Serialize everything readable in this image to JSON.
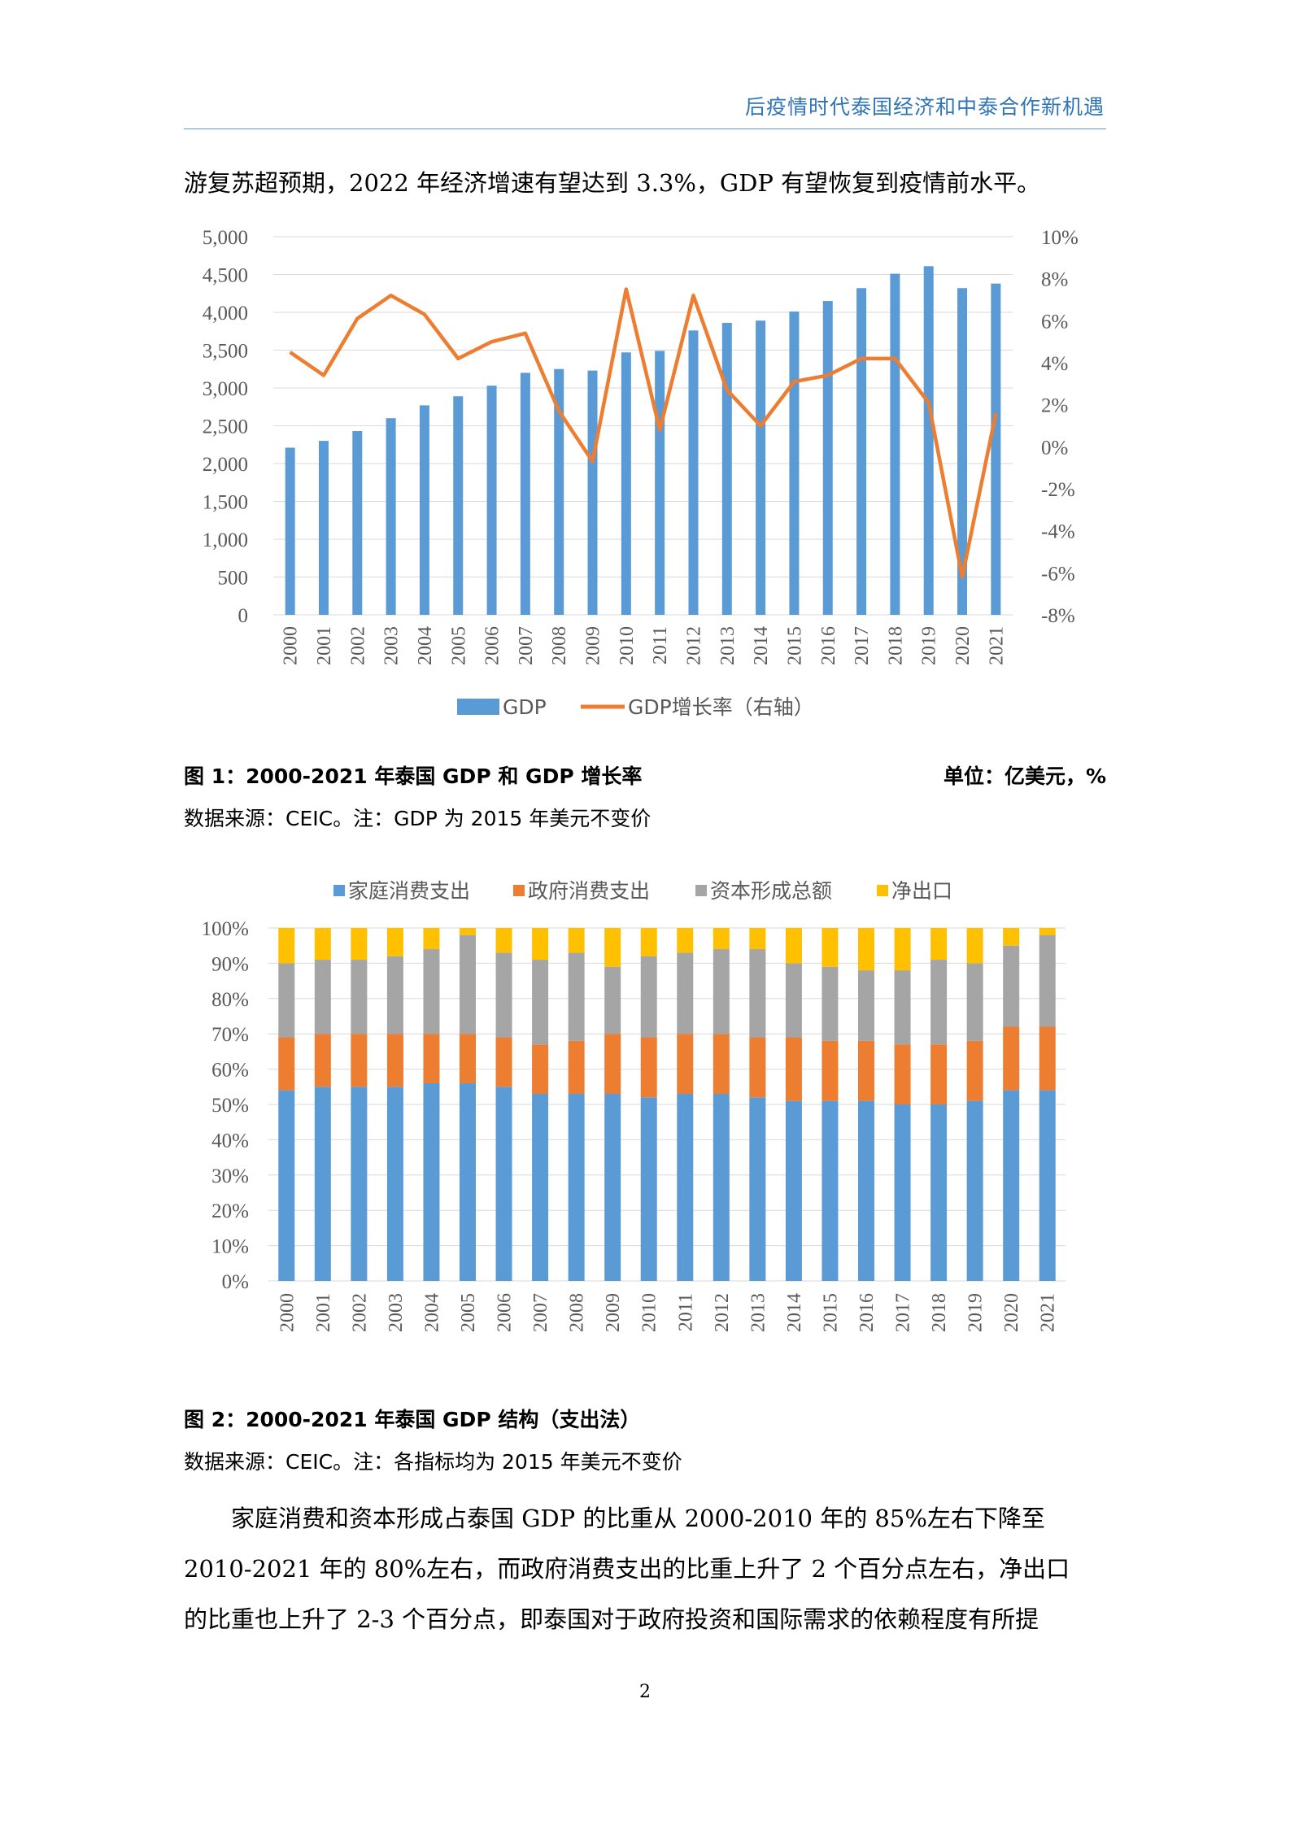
{
  "header": {
    "running_title": "后疫情时代泰国经济和中泰合作新机遇"
  },
  "intro_text": "游复苏超预期，2022 年经济增速有望达到 3.3%，GDP 有望恢复到疫情前水平。",
  "figure1": {
    "caption": "图 1：2000-2021 年泰国 GDP 和 GDP 增长率",
    "unit": "单位：亿美元，%",
    "source": "数据来源：CEIC。注：GDP 为 2015 年美元不变价"
  },
  "figure2": {
    "caption": "图 2：2000-2021 年泰国 GDP 结构（支出法）",
    "source": "数据来源：CEIC。注：各指标均为 2015 年美元不变价"
  },
  "body_text": {
    "line1": "家庭消费和资本形成占泰国 GDP 的比重从 2000-2010 年的 85%左右下降至",
    "line2": "2010-2021 年的 80%左右，而政府消费支出的比重上升了 2 个百分点左右，净出口",
    "line3": "的比重也上升了 2-3 个百分点，即泰国对于政府投资和国际需求的依赖程度有所提"
  },
  "page_number": "2",
  "colors": {
    "blue": "#5b9bd5",
    "orange": "#ed7d31",
    "gray": "#a5a5a5",
    "yellow": "#ffc000",
    "header_blue": "#2f75b5"
  },
  "chart_data": [
    {
      "type": "bar+line",
      "categories": [
        "2000",
        "2001",
        "2002",
        "2003",
        "2004",
        "2005",
        "2006",
        "2007",
        "2008",
        "2009",
        "2010",
        "2011",
        "2012",
        "2013",
        "2014",
        "2015",
        "2016",
        "2017",
        "2018",
        "2019",
        "2020",
        "2021"
      ],
      "series": [
        {
          "name": "GDP",
          "type": "bar",
          "axis": "left",
          "values": [
            2210,
            2300,
            2430,
            2600,
            2770,
            2890,
            3030,
            3200,
            3250,
            3230,
            3470,
            3490,
            3760,
            3860,
            3890,
            4010,
            4150,
            4320,
            4510,
            4610,
            4320,
            4380
          ]
        },
        {
          "name": "GDP增长率（右轴）",
          "type": "line",
          "axis": "right",
          "values": [
            4.5,
            3.4,
            6.1,
            7.2,
            6.3,
            4.2,
            5.0,
            5.4,
            1.7,
            -0.7,
            7.5,
            0.8,
            7.2,
            2.7,
            1.0,
            3.1,
            3.4,
            4.2,
            4.2,
            2.1,
            -6.2,
            1.6
          ]
        }
      ],
      "y_left": {
        "min": 0,
        "max": 5000,
        "ticks": [
          "0",
          "500",
          "1,000",
          "1,500",
          "2,000",
          "2,500",
          "3,000",
          "3,500",
          "4,000",
          "4,500",
          "5,000"
        ]
      },
      "y_right": {
        "min": -8,
        "max": 10,
        "ticks": [
          "-8%",
          "-6%",
          "-4%",
          "-2%",
          "0%",
          "2%",
          "4%",
          "6%",
          "8%",
          "10%"
        ]
      },
      "grid": true,
      "legend_position": "bottom"
    },
    {
      "type": "stacked-bar",
      "categories": [
        "2000",
        "2001",
        "2002",
        "2003",
        "2004",
        "2005",
        "2006",
        "2007",
        "2008",
        "2009",
        "2010",
        "2011",
        "2012",
        "2013",
        "2014",
        "2015",
        "2016",
        "2017",
        "2018",
        "2019",
        "2020",
        "2021"
      ],
      "series": [
        {
          "name": "家庭消费支出",
          "values": [
            54,
            55,
            55,
            55,
            56,
            56,
            55,
            53,
            53,
            53,
            52,
            53,
            53,
            52,
            51,
            51,
            51,
            50,
            50,
            51,
            54,
            54
          ]
        },
        {
          "name": "政府消费支出",
          "values": [
            15,
            15,
            15,
            15,
            14,
            14,
            14,
            14,
            15,
            17,
            17,
            17,
            17,
            17,
            18,
            17,
            17,
            17,
            17,
            17,
            18,
            18
          ]
        },
        {
          "name": "资本形成总额",
          "values": [
            21,
            21,
            21,
            22,
            24,
            28,
            24,
            24,
            25,
            19,
            23,
            23,
            24,
            25,
            21,
            21,
            20,
            21,
            24,
            22,
            23,
            26
          ]
        },
        {
          "name": "净出口",
          "values": [
            10,
            9,
            9,
            8,
            6,
            2,
            7,
            9,
            7,
            11,
            8,
            7,
            6,
            6,
            10,
            11,
            12,
            12,
            9,
            10,
            5,
            2
          ]
        }
      ],
      "y": {
        "min": 0,
        "max": 100,
        "ticks": [
          "0%",
          "10%",
          "20%",
          "30%",
          "40%",
          "50%",
          "60%",
          "70%",
          "80%",
          "90%",
          "100%"
        ]
      },
      "grid": true,
      "legend_position": "top"
    }
  ]
}
